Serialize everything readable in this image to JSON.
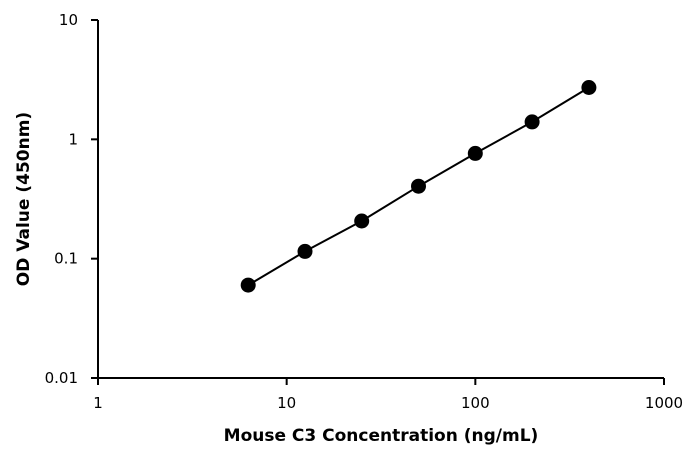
{
  "chart_data": {
    "type": "scatter",
    "title": "",
    "xlabel": "Mouse C3 Concentration  (ng/mL)",
    "ylabel": "OD Value (450nm)",
    "x_scale": "log",
    "y_scale": "log",
    "xlim": [
      1,
      1000
    ],
    "ylim": [
      0.01,
      10
    ],
    "x_ticks": [
      1,
      10,
      100,
      1000
    ],
    "x_tick_labels": [
      "1",
      "10",
      "100",
      "1000"
    ],
    "y_ticks": [
      0.01,
      0.1,
      1,
      10
    ],
    "y_tick_labels": [
      "0.01",
      "0.1",
      "1",
      "10"
    ],
    "grid": false,
    "legend": "none",
    "series": [
      {
        "x": [
          6.25,
          12.5,
          25,
          50,
          100,
          200,
          400
        ],
        "y": [
          0.06,
          0.115,
          0.207,
          0.405,
          0.762,
          1.4,
          2.72
        ],
        "color": "#000000",
        "marker": "circle",
        "line": true
      }
    ]
  }
}
